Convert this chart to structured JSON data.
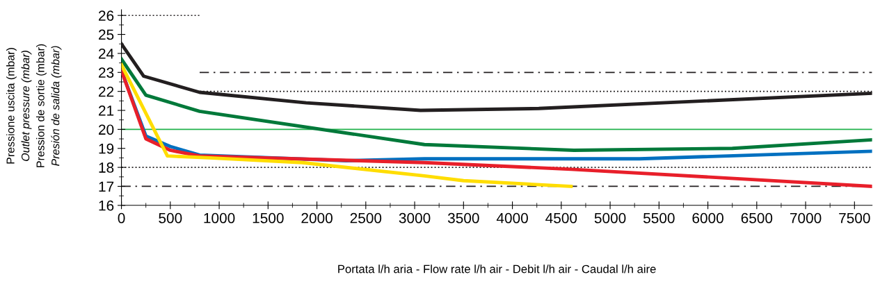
{
  "chart_data": {
    "type": "line",
    "xlabel": "Portata l/h aria - Flow rate l/h air - Debit l/h air - Caudal l/h aire",
    "ylabel": "Pressione uscita (mbar)\nOutlet pressure (mbar)\nPression de sortie (mbar)\nPresión de salida (mbar)",
    "xlim": [
      0,
      7680
    ],
    "ylim": [
      16,
      26.3
    ],
    "xticks": [
      0,
      500,
      1000,
      1500,
      2000,
      2500,
      3000,
      3500,
      4000,
      4500,
      5000,
      5500,
      6000,
      6500,
      7000,
      7500
    ],
    "yticks": [
      16,
      17,
      18,
      19,
      20,
      21,
      22,
      23,
      24,
      25,
      26
    ],
    "grid": false,
    "legend": false,
    "ref_lines": [
      {
        "axis": "y",
        "value": 20,
        "color": "#22b24c",
        "line_style": "solid"
      },
      {
        "axis": "y",
        "value": 18,
        "color": "#231f20",
        "line_style": "dotted"
      },
      {
        "axis": "y",
        "value": 17,
        "color": "#231f20",
        "line_style": "dashdot"
      }
    ],
    "series": [
      {
        "color": "#231f20",
        "line_style": "dotted",
        "x": [
          0,
          800
        ],
        "values": [
          26,
          26
        ]
      },
      {
        "color": "#231f20",
        "line_style": "dashdot",
        "x": [
          800,
          7680
        ],
        "values": [
          23,
          23
        ]
      },
      {
        "color": "#231f20",
        "line_style": "dotted",
        "x": [
          800,
          7680
        ],
        "values": [
          22,
          22
        ]
      },
      {
        "color": "#231f20",
        "x": [
          0,
          228,
          800,
          1890,
          3060,
          4270,
          7680
        ],
        "values": [
          24.5,
          22.8,
          21.95,
          21.4,
          21.0,
          21.1,
          21.9
        ]
      },
      {
        "color": "#00793a",
        "x": [
          0,
          250,
          800,
          3100,
          4630,
          6250,
          7680
        ],
        "values": [
          23.7,
          21.8,
          20.95,
          19.2,
          18.9,
          19.0,
          19.45
        ]
      },
      {
        "color": "#0070c0",
        "x": [
          0,
          250,
          500,
          800,
          2300,
          3100,
          5300,
          7680
        ],
        "values": [
          23.1,
          19.65,
          19.1,
          18.65,
          18.35,
          18.45,
          18.45,
          18.85
        ]
      },
      {
        "color": "#e81f2a",
        "x": [
          0,
          250,
          500,
          800,
          3100,
          4600,
          7680
        ],
        "values": [
          23.1,
          19.5,
          18.9,
          18.6,
          18.25,
          17.9,
          17.0
        ]
      },
      {
        "color": "#ffdd00",
        "x": [
          0,
          470,
          900,
          1850,
          3100,
          3500,
          4600
        ],
        "values": [
          23.4,
          18.6,
          18.5,
          18.25,
          17.55,
          17.3,
          17.0
        ]
      }
    ]
  }
}
